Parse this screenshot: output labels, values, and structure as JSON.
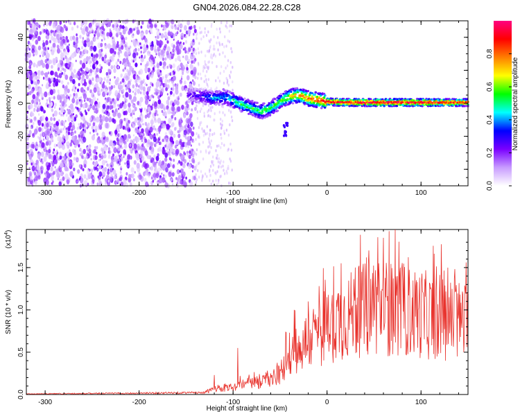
{
  "title": "GN04.2026.084.22.28.C28",
  "chart_data": [
    {
      "type": "heatmap",
      "xlabel": "Height of straight line (km)",
      "ylabel": "Frequency (Hz)",
      "xlim": [
        -320,
        150
      ],
      "ylim": [
        -50,
        50
      ],
      "xticks": [
        -300,
        -200,
        -100,
        0,
        100
      ],
      "yticks": [
        -40,
        -20,
        0,
        20,
        40
      ],
      "colorbar": {
        "label": "Normalized spectral amplitude",
        "range": [
          0,
          1
        ],
        "ticks": [
          "0.0",
          "0.2",
          "0.4",
          "0.6",
          "0.8"
        ],
        "tick_values": [
          0.0,
          0.2,
          0.4,
          0.6,
          0.8
        ],
        "colormap": [
          "#ffffff",
          "#c89cff",
          "#7a00ff",
          "#0000ff",
          "#00ffff",
          "#00ff00",
          "#ffff00",
          "#ff7f00",
          "#ff0000",
          "#ff0080"
        ]
      },
      "noise_region": {
        "x": [
          -320,
          -140
        ],
        "freq": [
          -50,
          50
        ],
        "amplitude": [
          0.0,
          0.2
        ]
      },
      "signal_track": {
        "x": [
          -145,
          -130,
          -120,
          -110,
          -100,
          -90,
          -80,
          -70,
          -60,
          -50,
          -40,
          -30,
          -20,
          -10,
          0,
          20,
          50,
          100,
          150
        ],
        "freq": [
          5,
          4,
          3,
          4,
          2,
          -1,
          -3,
          -5,
          -3,
          1,
          4,
          5,
          3,
          2,
          1,
          0.5,
          0.5,
          0.5,
          0.5
        ],
        "amplitude": [
          0.25,
          0.35,
          0.45,
          0.4,
          0.5,
          0.55,
          0.55,
          0.6,
          0.55,
          0.6,
          0.7,
          0.8,
          0.85,
          0.9,
          0.95,
          0.97,
          1.0,
          1.0,
          0.9
        ]
      },
      "grid": false
    },
    {
      "type": "line",
      "xlabel": "Height of straight line (km)",
      "ylabel": "SNR (10 * v/v)",
      "y_exponent_label": "(x10",
      "y_exponent": "4",
      "y_exponent_close": ")",
      "xlim": [
        -320,
        150
      ],
      "ylim": [
        0,
        1.95
      ],
      "xticks": [
        -300,
        -200,
        -100,
        0,
        100
      ],
      "yticks": [
        "0.0",
        "0.5",
        "1.0",
        "1.5"
      ],
      "ytick_values": [
        0,
        0.5,
        1.0,
        1.5
      ],
      "series": [
        {
          "color": "#e8302a",
          "envelope_x": [
            -320,
            -200,
            -130,
            -120,
            -110,
            -100,
            -90,
            -80,
            -70,
            -60,
            -50,
            -45,
            -40,
            -35,
            -30,
            -25,
            -20,
            -15,
            -10,
            -5,
            0,
            5,
            10,
            20,
            30,
            40,
            50,
            60,
            70,
            80,
            90,
            100,
            110,
            120,
            130,
            140,
            150
          ],
          "envelope_y": [
            0.01,
            0.02,
            0.03,
            0.08,
            0.09,
            0.1,
            0.15,
            0.17,
            0.18,
            0.22,
            0.3,
            0.45,
            0.55,
            0.7,
            0.62,
            0.75,
            0.8,
            0.85,
            0.9,
            0.95,
            1.0,
            1.05,
            1.1,
            1.15,
            1.2,
            1.25,
            1.3,
            1.3,
            1.25,
            1.25,
            1.2,
            1.2,
            1.15,
            1.15,
            1.1,
            1.1,
            1.05
          ],
          "peaks": [
            [
              -120,
              0.23
            ],
            [
              -95,
              0.55
            ],
            [
              -40,
              0.73
            ],
            [
              -35,
              1.0
            ],
            [
              -20,
              1.1
            ],
            [
              0,
              1.15
            ],
            [
              15,
              1.55
            ],
            [
              30,
              1.5
            ],
            [
              42,
              1.62
            ],
            [
              55,
              1.55
            ],
            [
              66,
              1.93
            ],
            [
              78,
              1.5
            ],
            [
              95,
              1.35
            ],
            [
              110,
              1.25
            ],
            [
              130,
              1.15
            ]
          ]
        }
      ],
      "grid": false
    }
  ]
}
